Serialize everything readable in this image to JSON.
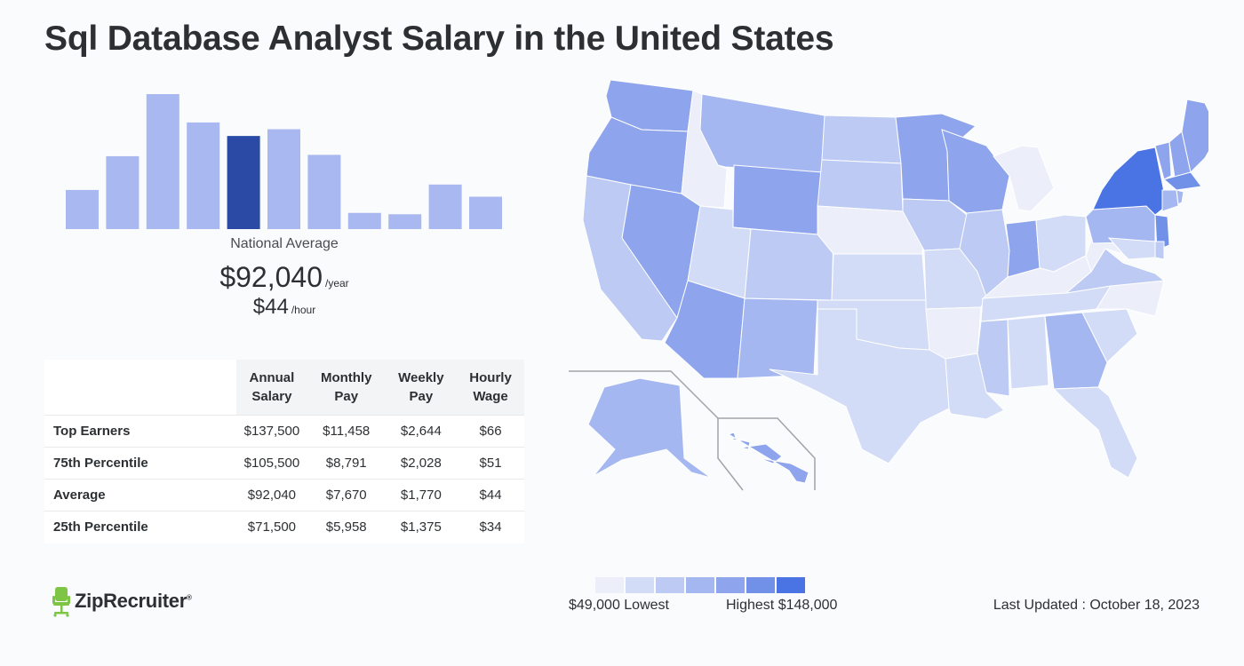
{
  "title": "Sql Database Analyst Salary in the United States",
  "histogram": {
    "label": "National Average",
    "bar_heights_relative": [
      0.29,
      0.54,
      1.0,
      0.79,
      0.69,
      0.74,
      0.55,
      0.12,
      0.11,
      0.33,
      0.24
    ],
    "highlight_index": 4,
    "bar_color": "#a9b8f0",
    "highlight_color": "#2a4aa6"
  },
  "national_average": {
    "yearly": "$92,040",
    "yearly_unit": "/year",
    "hourly": "$44",
    "hourly_unit": "/hour"
  },
  "chart_data": {
    "type": "table",
    "columns": [
      "Annual Salary",
      "Monthly Pay",
      "Weekly Pay",
      "Hourly Wage"
    ],
    "column_lines": [
      [
        "Annual",
        "Salary"
      ],
      [
        "Monthly",
        "Pay"
      ],
      [
        "Weekly",
        "Pay"
      ],
      [
        "Hourly",
        "Wage"
      ]
    ],
    "rows": [
      {
        "label": "Top Earners",
        "values": [
          "$137,500",
          "$11,458",
          "$2,644",
          "$66"
        ]
      },
      {
        "label": "75th Percentile",
        "values": [
          "$105,500",
          "$8,791",
          "$2,028",
          "$51"
        ]
      },
      {
        "label": "Average",
        "values": [
          "$92,040",
          "$7,670",
          "$1,770",
          "$44"
        ]
      },
      {
        "label": "25th Percentile",
        "values": [
          "$71,500",
          "$5,958",
          "$1,375",
          "$34"
        ]
      }
    ]
  },
  "map": {
    "states": [
      {
        "id": "WA",
        "level": 4
      },
      {
        "id": "OR",
        "level": 4
      },
      {
        "id": "CA",
        "level": 2
      },
      {
        "id": "NV",
        "level": 4
      },
      {
        "id": "ID",
        "level": 0
      },
      {
        "id": "MT",
        "level": 3
      },
      {
        "id": "WY",
        "level": 4
      },
      {
        "id": "UT",
        "level": 1
      },
      {
        "id": "AZ",
        "level": 4
      },
      {
        "id": "CO",
        "level": 2
      },
      {
        "id": "NM",
        "level": 3
      },
      {
        "id": "ND",
        "level": 2
      },
      {
        "id": "SD",
        "level": 2
      },
      {
        "id": "NE",
        "level": 0
      },
      {
        "id": "KS",
        "level": 1
      },
      {
        "id": "OK",
        "level": 1
      },
      {
        "id": "TX",
        "level": 1
      },
      {
        "id": "MN",
        "level": 4
      },
      {
        "id": "IA",
        "level": 2
      },
      {
        "id": "MO",
        "level": 1
      },
      {
        "id": "AR",
        "level": 0
      },
      {
        "id": "LA",
        "level": 1
      },
      {
        "id": "WI",
        "level": 4
      },
      {
        "id": "IL",
        "level": 2
      },
      {
        "id": "MI",
        "level": 0
      },
      {
        "id": "IN",
        "level": 4
      },
      {
        "id": "OH",
        "level": 1
      },
      {
        "id": "KY",
        "level": 0
      },
      {
        "id": "TN",
        "level": 1
      },
      {
        "id": "MS",
        "level": 2
      },
      {
        "id": "AL",
        "level": 1
      },
      {
        "id": "GA",
        "level": 3
      },
      {
        "id": "FL",
        "level": 1
      },
      {
        "id": "SC",
        "level": 1
      },
      {
        "id": "NC",
        "level": 0
      },
      {
        "id": "VA",
        "level": 2
      },
      {
        "id": "WV",
        "level": 0
      },
      {
        "id": "PA",
        "level": 3
      },
      {
        "id": "NY",
        "level": 6
      },
      {
        "id": "NJ",
        "level": 5
      },
      {
        "id": "MD",
        "level": 1
      },
      {
        "id": "DE",
        "level": 2
      },
      {
        "id": "VT",
        "level": 4
      },
      {
        "id": "NH",
        "level": 4
      },
      {
        "id": "MA",
        "level": 5
      },
      {
        "id": "CT",
        "level": 3
      },
      {
        "id": "RI",
        "level": 3
      },
      {
        "id": "ME",
        "level": 4
      },
      {
        "id": "AK",
        "level": 3
      },
      {
        "id": "HI",
        "level": 4
      }
    ]
  },
  "legend": {
    "colors": [
      "#eceefa",
      "#d3dcf7",
      "#bccaf4",
      "#a5b7f0",
      "#8ea4ec",
      "#7190e8",
      "#4a73e4"
    ],
    "low": "$49,000 Lowest",
    "high": "Highest $148,000"
  },
  "last_updated": "Last Updated : October 18, 2023",
  "logo": {
    "name": "ZipRecruiter",
    "reg": "®"
  }
}
